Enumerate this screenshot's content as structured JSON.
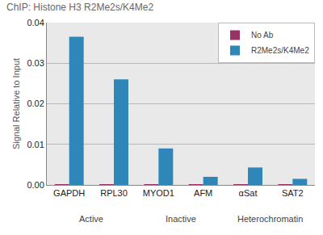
{
  "chart_data": {
    "type": "bar",
    "title": "ChIP: Histone H3 R2Me2s/K4Me2",
    "y_label": "Signal Relative to Input",
    "categories": [
      "GAPDH",
      "RPL30",
      "MYOD1",
      "AFM",
      "αSat",
      "SAT2"
    ],
    "series": [
      {
        "name": "No Ab",
        "color": "#993366",
        "values": [
          0.0002,
          0.0002,
          0.0002,
          0.0002,
          0.0002,
          0.0002
        ]
      },
      {
        "name": "R2Me2s/K4Me2",
        "color": "#2f86b8",
        "values": [
          0.0365,
          0.026,
          0.009,
          0.002,
          0.0043,
          0.0015
        ]
      }
    ],
    "groups": [
      {
        "label": "Active",
        "categories": [
          "GAPDH",
          "RPL30"
        ]
      },
      {
        "label": "Inactive",
        "categories": [
          "MYOD1",
          "AFM"
        ]
      },
      {
        "label": "Heterochromatin",
        "categories": [
          "αSat",
          "SAT2"
        ]
      }
    ],
    "ylim": [
      0,
      0.04
    ],
    "yticks": [
      {
        "value": 0,
        "label": "0.00"
      },
      0.01,
      0.02,
      0.03,
      0.04
    ],
    "grid": true,
    "legend": "top-right"
  }
}
